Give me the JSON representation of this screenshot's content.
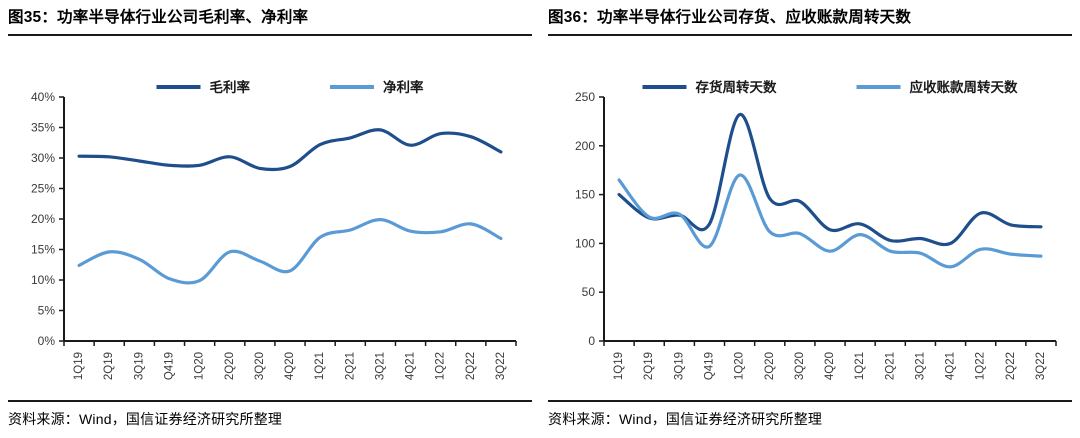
{
  "panels": [
    {
      "title": "图35：功率半导体行业公司毛利率、净利率",
      "source": "资料来源：Wind，国信证券经济研究所整理"
    },
    {
      "title": "图36：功率半导体行业公司存货、应收账款周转天数",
      "source": "资料来源：Wind，国信证券经济研究所整理"
    }
  ],
  "colors": {
    "series_dark": "#1F4E8C",
    "series_light": "#5B9BD5",
    "axis": "#1a1a1a",
    "tick_label": "#3a3a3a",
    "legend_text": "#1a1a1a"
  },
  "chart_data": [
    {
      "type": "line",
      "title": "功率半导体行业公司毛利率、净利率",
      "categories": [
        "1Q19",
        "2Q19",
        "3Q19",
        "Q419",
        "1Q20",
        "2Q20",
        "3Q20",
        "4Q20",
        "1Q21",
        "2Q21",
        "3Q21",
        "4Q21",
        "1Q22",
        "2Q22",
        "3Q22"
      ],
      "series": [
        {
          "name": "毛利率",
          "color": "#1F4E8C",
          "values": [
            30.3,
            30.2,
            29.5,
            28.8,
            28.8,
            30.2,
            28.3,
            28.6,
            32.2,
            33.3,
            34.6,
            32.1,
            34.0,
            33.5,
            31.0
          ]
        },
        {
          "name": "净利率",
          "color": "#5B9BD5",
          "values": [
            12.4,
            14.6,
            13.4,
            10.2,
            9.9,
            14.6,
            13.1,
            11.5,
            17.0,
            18.2,
            19.9,
            18.0,
            17.9,
            19.2,
            16.8
          ]
        }
      ],
      "xlabel": "",
      "ylabel": "",
      "ylim": [
        0,
        40
      ],
      "ytick_step": 5,
      "yformat": "percent",
      "legend_position": "top",
      "grid": false
    },
    {
      "type": "line",
      "title": "功率半导体行业公司存货、应收账款周转天数",
      "categories": [
        "1Q19",
        "2Q19",
        "3Q19",
        "Q419",
        "1Q20",
        "2Q20",
        "3Q20",
        "4Q20",
        "1Q21",
        "2Q21",
        "3Q21",
        "4Q21",
        "1Q22",
        "2Q22",
        "3Q22"
      ],
      "series": [
        {
          "name": "存货周转天数",
          "color": "#1F4E8C",
          "values": [
            150,
            126,
            129,
            120,
            232,
            146,
            143,
            114,
            120,
            103,
            105,
            100,
            131,
            119,
            117
          ]
        },
        {
          "name": "应收账款周转天数",
          "color": "#5B9BD5",
          "values": [
            165,
            127,
            130,
            97,
            170,
            112,
            110,
            92,
            109,
            92,
            90,
            76,
            94,
            89,
            87
          ]
        }
      ],
      "xlabel": "",
      "ylabel": "",
      "ylim": [
        0,
        250
      ],
      "ytick_step": 50,
      "yformat": "number",
      "legend_position": "top",
      "grid": false
    }
  ]
}
